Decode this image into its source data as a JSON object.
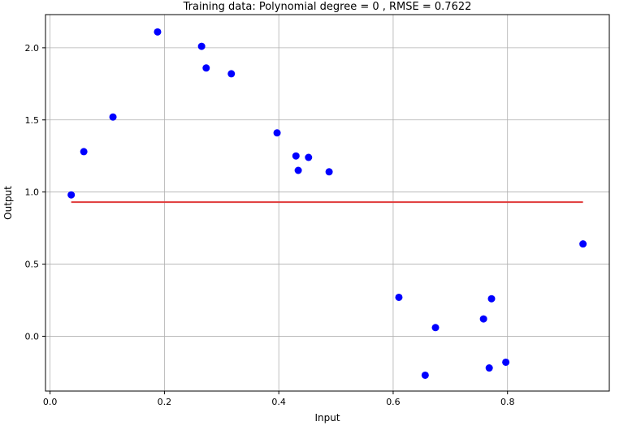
{
  "chart_data": {
    "type": "scatter",
    "title": "Training data: Polynomial degree = 0 , RMSE = 0.7622",
    "xlabel": "Input",
    "ylabel": "Output",
    "xlim": [
      -0.008,
      0.978
    ],
    "ylim": [
      -0.38,
      2.23
    ],
    "x_ticks": [
      0.0,
      0.2,
      0.4,
      0.6,
      0.8
    ],
    "x_tick_labels": [
      "0.0",
      "0.2",
      "0.4",
      "0.6",
      "0.8"
    ],
    "y_ticks": [
      0.0,
      0.5,
      1.0,
      1.5,
      2.0
    ],
    "y_tick_labels": [
      "0.0",
      "0.5",
      "1.0",
      "1.5",
      "2.0"
    ],
    "grid": true,
    "series": [
      {
        "type": "scatter",
        "color": "#0000ff",
        "points": [
          {
            "x": 0.037,
            "y": 0.98
          },
          {
            "x": 0.059,
            "y": 1.28
          },
          {
            "x": 0.11,
            "y": 1.52
          },
          {
            "x": 0.188,
            "y": 2.11
          },
          {
            "x": 0.265,
            "y": 2.01
          },
          {
            "x": 0.273,
            "y": 1.86
          },
          {
            "x": 0.317,
            "y": 1.82
          },
          {
            "x": 0.397,
            "y": 1.41
          },
          {
            "x": 0.43,
            "y": 1.25
          },
          {
            "x": 0.434,
            "y": 1.15
          },
          {
            "x": 0.452,
            "y": 1.24
          },
          {
            "x": 0.488,
            "y": 1.14
          },
          {
            "x": 0.61,
            "y": 0.27
          },
          {
            "x": 0.656,
            "y": -0.27
          },
          {
            "x": 0.674,
            "y": 0.06
          },
          {
            "x": 0.758,
            "y": 0.12
          },
          {
            "x": 0.768,
            "y": -0.22
          },
          {
            "x": 0.772,
            "y": 0.26
          },
          {
            "x": 0.797,
            "y": -0.18
          },
          {
            "x": 0.932,
            "y": 0.64
          }
        ]
      },
      {
        "type": "line",
        "color": "#e03a3a",
        "x": [
          0.037,
          0.932
        ],
        "y": [
          0.93,
          0.93
        ]
      }
    ]
  }
}
